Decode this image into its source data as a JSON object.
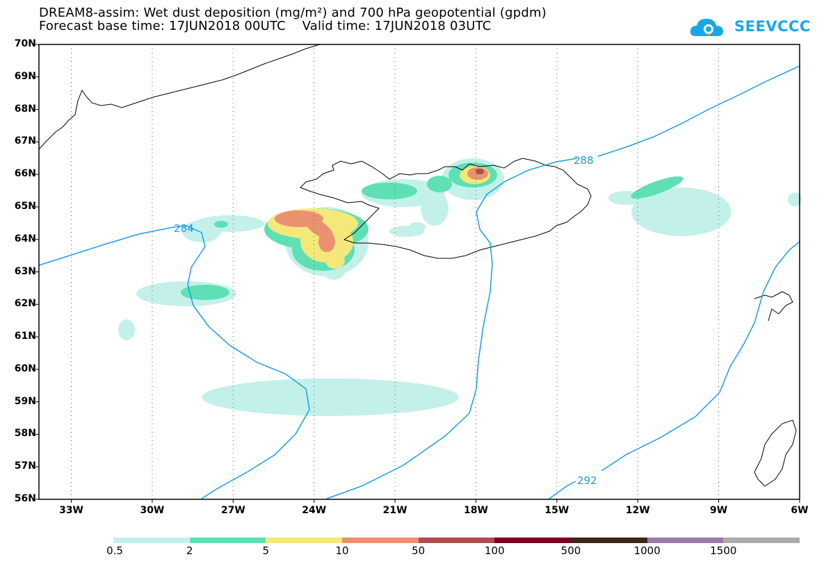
{
  "title": {
    "line1": "DREAM8-assim: Wet dust deposition (mg/m²) and 700 hPa geopotential (gpdm)",
    "line2": "Forecast base time: 17JUN2018 00UTC    Valid time: 17JUN2018 03UTC"
  },
  "logo": {
    "text": "SEEVCCC",
    "icon": "cloud-icon",
    "color": "#1aa7e8"
  },
  "map": {
    "lat_labels": [
      "70N",
      "69N",
      "68N",
      "67N",
      "66N",
      "65N",
      "64N",
      "63N",
      "62N",
      "61N",
      "60N",
      "59N",
      "58N",
      "57N",
      "56N"
    ],
    "lon_labels": [
      "33W",
      "30W",
      "27W",
      "24W",
      "21W",
      "18W",
      "15W",
      "12W",
      "9W",
      "6W"
    ],
    "contour_labels": [
      "284",
      "288",
      "292"
    ],
    "contour_color": "#1a9de8",
    "lat_range": [
      56,
      70
    ],
    "lon_range": [
      -34.2,
      -6
    ]
  },
  "colorbar": {
    "colors": [
      "#c4f0ea",
      "#5ee0b4",
      "#f4e87a",
      "#ea9270",
      "#a85050",
      "#7a0020",
      "#3a2a1a",
      "#9a78a8",
      "#aaaaaa"
    ],
    "labels": [
      "0.5",
      "2",
      "5",
      "10",
      "50",
      "100",
      "500",
      "1000",
      "1500"
    ]
  }
}
